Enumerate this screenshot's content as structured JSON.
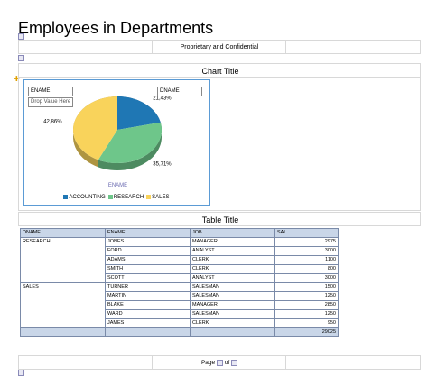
{
  "report": {
    "title": "Employees in Departments",
    "header_text": "Proprietary and Confidential",
    "chart_title": "Chart Title",
    "table_title": "Table Title",
    "footer": {
      "page_label": "Page",
      "of_label": "of"
    }
  },
  "chart": {
    "category_field": "ENAME",
    "series_field": "DNAME",
    "drop_hint": "Drop Value Here",
    "axis_label": "ENAME"
  },
  "chart_data": {
    "type": "pie",
    "categories": [
      "ACCOUNTING",
      "RESEARCH",
      "SALES"
    ],
    "values": [
      21.43,
      35.71,
      42.86
    ],
    "value_labels": [
      "21,43%",
      "35,71%",
      "42,86%"
    ],
    "colors": [
      "#1f77b4",
      "#6ec68a",
      "#f9d35b"
    ],
    "legend_position": "bottom"
  },
  "table": {
    "columns": [
      "DNAME",
      "ENAME",
      "JOB",
      "SAL"
    ],
    "groups": [
      {
        "dname": "RESEARCH",
        "rows": [
          {
            "ename": "JONES",
            "job": "MANAGER",
            "sal": "2975"
          },
          {
            "ename": "FORD",
            "job": "ANALYST",
            "sal": "3000"
          },
          {
            "ename": "ADAMS",
            "job": "CLERK",
            "sal": "1100"
          },
          {
            "ename": "SMITH",
            "job": "CLERK",
            "sal": "800"
          },
          {
            "ename": "SCOTT",
            "job": "ANALYST",
            "sal": "3000"
          }
        ]
      },
      {
        "dname": "SALES",
        "rows": [
          {
            "ename": "TURNER",
            "job": "SALESMAN",
            "sal": "1500"
          },
          {
            "ename": "MARTIN",
            "job": "SALESMAN",
            "sal": "1250"
          },
          {
            "ename": "BLAKE",
            "job": "MANAGER",
            "sal": "2850"
          },
          {
            "ename": "WARD",
            "job": "SALESMAN",
            "sal": "1250"
          },
          {
            "ename": "JAMES",
            "job": "CLERK",
            "sal": "950"
          }
        ]
      }
    ],
    "total": "29025"
  }
}
